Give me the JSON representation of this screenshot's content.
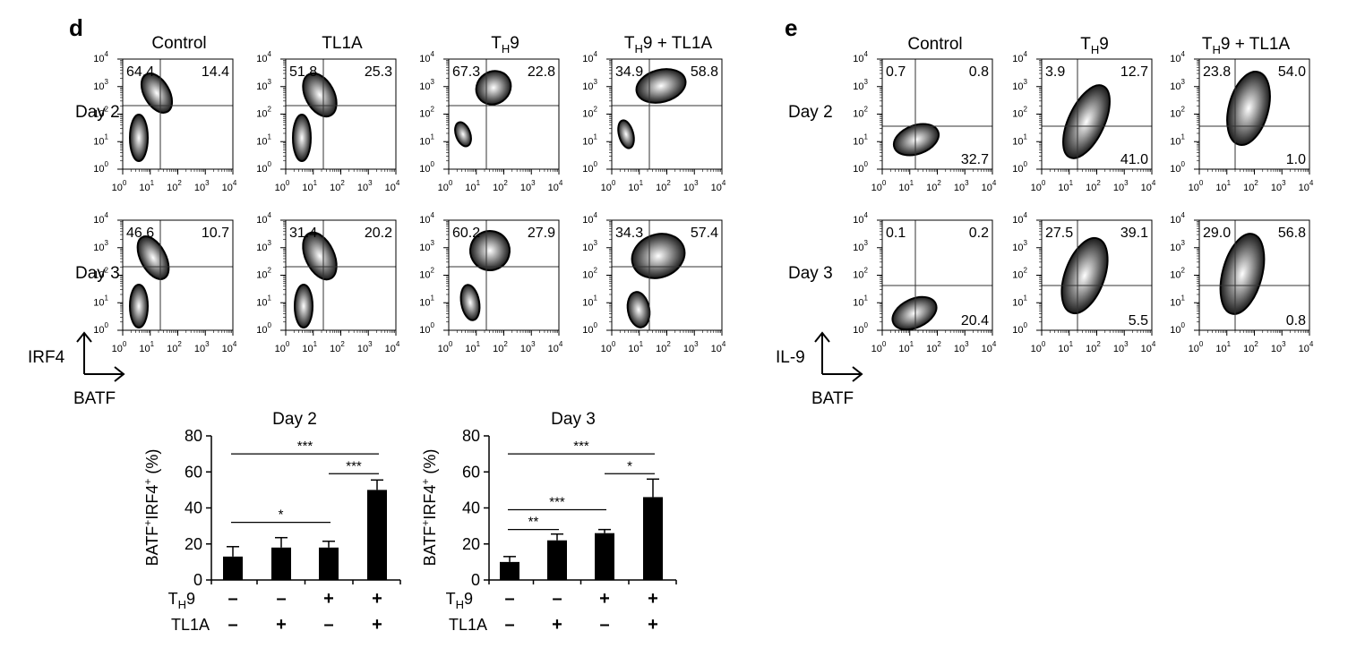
{
  "panel_d": {
    "letter": "d",
    "columns": [
      {
        "main": "Control",
        "sub": "",
        "tail": ""
      },
      {
        "main": "TL1A",
        "sub": "",
        "tail": ""
      },
      {
        "main": "T",
        "sub": "H",
        "tail": "9"
      },
      {
        "main": "T",
        "sub": "H",
        "tail": "9 + TL1A"
      }
    ],
    "rows": [
      "Day 2",
      "Day 3"
    ],
    "y_axis_label": "IRF4",
    "x_axis_label": "BATF",
    "tick_labels": [
      "10",
      "10",
      "10",
      "10",
      "10"
    ],
    "tick_exponents": [
      "0",
      "1",
      "2",
      "3",
      "4"
    ],
    "quadrants": [
      [
        [
          "64.4",
          "14.4"
        ],
        [
          "51.8",
          "25.3"
        ],
        [
          "67.3",
          "22.8"
        ],
        [
          "34.9",
          "58.8"
        ]
      ],
      [
        [
          "46.6",
          "10.7"
        ],
        [
          "31.4",
          "20.2"
        ],
        [
          "60.2",
          "27.9"
        ],
        [
          "34.3",
          "57.4"
        ]
      ]
    ]
  },
  "panel_e": {
    "letter": "e",
    "columns": [
      {
        "main": "Control",
        "sub": "",
        "tail": ""
      },
      {
        "main": "T",
        "sub": "H",
        "tail": "9"
      },
      {
        "main": "T",
        "sub": "H",
        "tail": "9 + TL1A"
      }
    ],
    "rows": [
      "Day 2",
      "Day 3"
    ],
    "y_axis_label": "IL-9",
    "x_axis_label": "BATF",
    "quadrants": [
      [
        [
          "0.7",
          "0.8",
          "32.7"
        ],
        [
          "3.9",
          "12.7",
          "41.0"
        ],
        [
          "23.8",
          "54.0",
          "1.0"
        ]
      ],
      [
        [
          "0.1",
          "0.2",
          "20.4"
        ],
        [
          "27.5",
          "39.1",
          "5.5"
        ],
        [
          "29.0",
          "56.8",
          "0.8"
        ]
      ]
    ]
  },
  "chart_data": [
    {
      "type": "bar",
      "title": "Day 2",
      "ylabel": "BATF+IRF4+ (%)",
      "ylabel_parts": {
        "a": "BATF",
        "a_sup": "+",
        "b": "IRF4",
        "b_sup": "+",
        "unit": " (%)"
      },
      "ylim": [
        0,
        80
      ],
      "yticks": [
        "0",
        "20",
        "40",
        "60",
        "80"
      ],
      "yticks_values": [
        0,
        20,
        40,
        60,
        80
      ],
      "values": [
        13,
        18,
        18,
        50
      ],
      "errors": [
        5.5,
        5.5,
        3.5,
        5.5
      ],
      "conditions": {
        "row1": {
          "label": "T",
          "sub": "H",
          "tail": "9",
          "marks": [
            "–",
            "–",
            "+",
            "+"
          ]
        },
        "row2": {
          "label": "TL1A",
          "marks": [
            "–",
            "+",
            "–",
            "+"
          ]
        }
      },
      "significance": [
        {
          "from": 0,
          "to": 3,
          "label": "***",
          "y": 70
        },
        {
          "from": 2,
          "to": 3,
          "label": "***",
          "y": 59
        },
        {
          "from": 0,
          "to": 2,
          "label": "*",
          "y": 32
        }
      ]
    },
    {
      "type": "bar",
      "title": "Day 3",
      "ylabel": "BATF+IRF4+ (%)",
      "ylabel_parts": {
        "a": "BATF",
        "a_sup": "+",
        "b": "IRF4",
        "b_sup": "+",
        "unit": " (%)"
      },
      "ylim": [
        0,
        80
      ],
      "yticks": [
        "0",
        "20",
        "40",
        "60",
        "80"
      ],
      "yticks_values": [
        0,
        20,
        40,
        60,
        80
      ],
      "values": [
        10,
        22,
        26,
        46
      ],
      "errors": [
        3,
        3.5,
        2,
        10
      ],
      "conditions": {
        "row1": {
          "label": "T",
          "sub": "H",
          "tail": "9",
          "marks": [
            "–",
            "–",
            "+",
            "+"
          ]
        },
        "row2": {
          "label": "TL1A",
          "marks": [
            "–",
            "+",
            "–",
            "+"
          ]
        }
      },
      "significance": [
        {
          "from": 0,
          "to": 3,
          "label": "***",
          "y": 70
        },
        {
          "from": 2,
          "to": 3,
          "label": "*",
          "y": 59
        },
        {
          "from": 0,
          "to": 2,
          "label": "***",
          "y": 39
        },
        {
          "from": 0,
          "to": 1,
          "label": "**",
          "y": 28
        }
      ]
    }
  ]
}
